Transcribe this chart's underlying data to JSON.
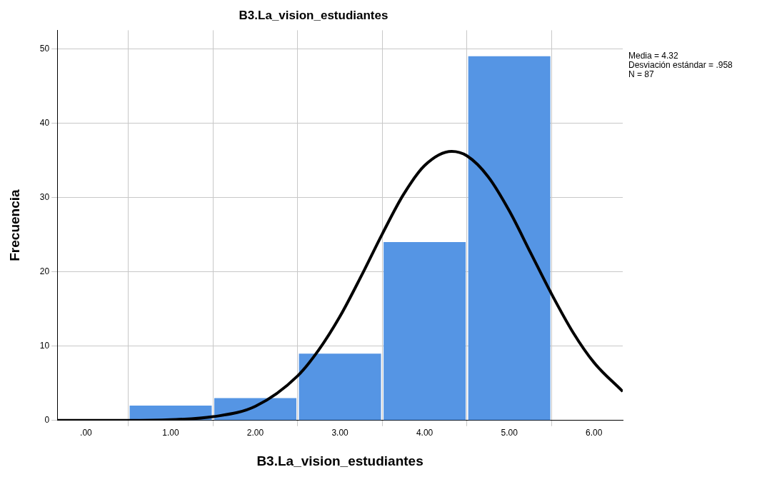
{
  "chart_data": {
    "type": "histogram",
    "title": "B3.La_vision_estudiantes",
    "xlabel": "B3.La_vision_estudiantes",
    "ylabel": "Frecuencia",
    "bins": [
      0.5,
      1.5,
      2.5,
      3.5,
      4.5,
      5.5
    ],
    "values": [
      2,
      3,
      9,
      24,
      49
    ],
    "color": "#5595e4",
    "series": [
      {
        "type": "line",
        "color": "#000000",
        "x": [
          -0.34,
          0.5,
          1,
          1.5,
          2,
          2.5,
          2.75,
          3,
          3.25,
          3.5,
          3.75,
          4,
          4.32,
          4.5,
          4.75,
          5,
          5.25,
          5.5,
          5.75,
          6,
          6.34
        ],
        "values": [
          0,
          0,
          0.1,
          0.5,
          1.9,
          6,
          9.5,
          14,
          19.4,
          25.1,
          30.4,
          34.3,
          36.2,
          35.6,
          32.8,
          28.2,
          22.6,
          17,
          11.9,
          7.8,
          3.9
        ]
      }
    ],
    "xlim": [
      -0.34,
      6.34
    ],
    "xticks": [
      {
        "value": 0,
        "label": ".00"
      },
      {
        "value": 1,
        "label": "1.00"
      },
      {
        "value": 2,
        "label": "2.00"
      },
      {
        "value": 3,
        "label": "3.00"
      },
      {
        "value": 4,
        "label": "4.00"
      },
      {
        "value": 5,
        "label": "5.00"
      },
      {
        "value": 6,
        "label": "6.00"
      }
    ],
    "ylim": [
      0,
      52.5
    ],
    "yticks": [
      0,
      10,
      20,
      30,
      40,
      50
    ],
    "grid": true,
    "legend": false,
    "marker": "none",
    "line_style": "solid",
    "annotations": [
      "Media = 4.32",
      "Desviación estándar = .958",
      "N = 87"
    ]
  }
}
